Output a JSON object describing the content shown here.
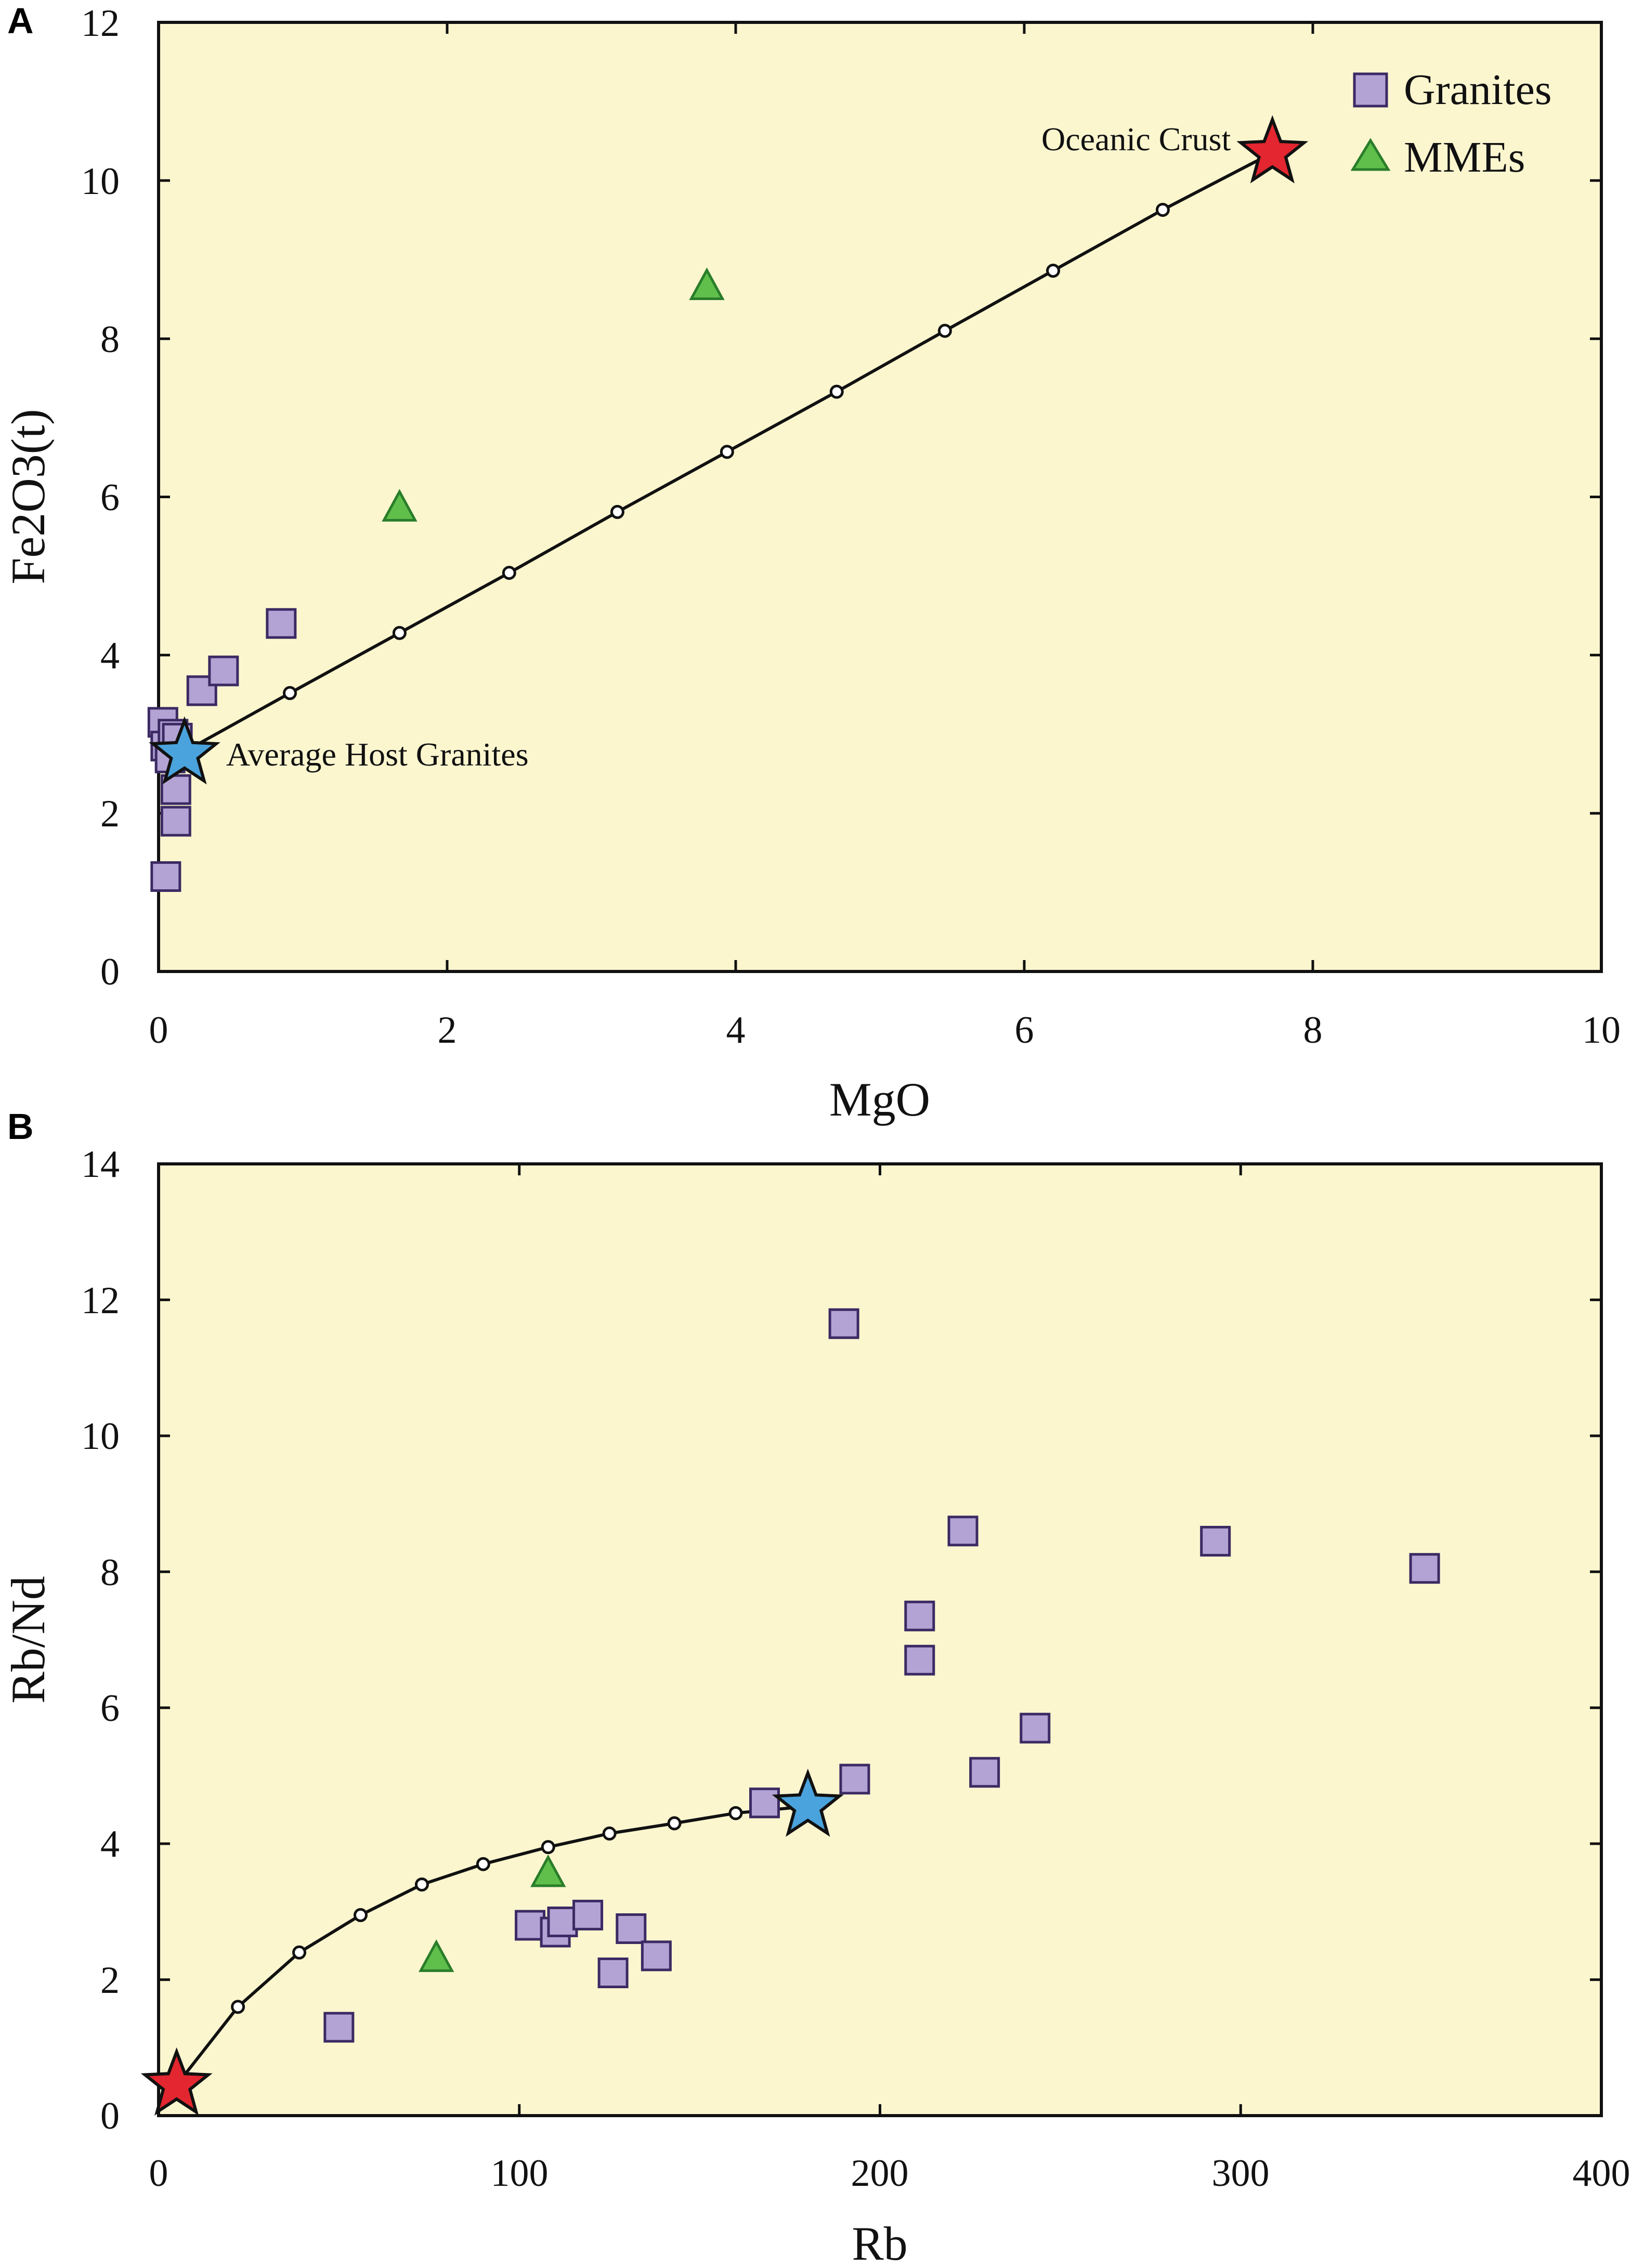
{
  "colors": {
    "plot_bg": "#fcf6cf",
    "granite_fill": "#b3a3d4",
    "granite_stroke": "#3b2a63",
    "mme_fill": "#5fbf4a",
    "mme_stroke": "#2a7d2a",
    "star_red": "#e3262f",
    "star_blue": "#4aa3dc",
    "line": "#111111"
  },
  "chart_data": [
    {
      "type": "scatter",
      "panel": "A",
      "xlabel": "MgO",
      "ylabel": "Fe2O3(t)",
      "xlim": [
        0,
        10
      ],
      "ylim": [
        0,
        12
      ],
      "xticks": [
        "0",
        "2",
        "4",
        "6",
        "8",
        "10"
      ],
      "yticks": [
        "0",
        "2",
        "4",
        "6",
        "8",
        "10",
        "12"
      ],
      "legend": [
        {
          "label": "Granites",
          "marker": "square"
        },
        {
          "label": "MMEs",
          "marker": "triangle"
        }
      ],
      "series": [
        {
          "name": "Granites",
          "marker": "square",
          "points": [
            [
              0.03,
              3.15
            ],
            [
              0.05,
              2.85
            ],
            [
              0.08,
              2.7
            ],
            [
              0.1,
              3.0
            ],
            [
              0.13,
              2.95
            ],
            [
              0.12,
              2.3
            ],
            [
              0.12,
              1.9
            ],
            [
              0.05,
              1.2
            ],
            [
              0.3,
              3.55
            ],
            [
              0.45,
              3.8
            ],
            [
              0.85,
              4.4
            ]
          ]
        },
        {
          "name": "MMEs",
          "marker": "triangle",
          "points": [
            [
              1.67,
              5.85
            ],
            [
              3.8,
              8.65
            ]
          ]
        }
      ],
      "mixing_line": {
        "points": [
          [
            0.15,
            2.75
          ],
          [
            0.91,
            3.52
          ],
          [
            1.67,
            4.28
          ],
          [
            2.43,
            5.04
          ],
          [
            3.18,
            5.81
          ],
          [
            3.94,
            6.57
          ],
          [
            4.7,
            7.33
          ],
          [
            5.45,
            8.1
          ],
          [
            6.2,
            8.86
          ],
          [
            6.96,
            9.63
          ],
          [
            7.72,
            10.35
          ]
        ]
      },
      "end_members": [
        {
          "label": "Average Host Granites",
          "x": 0.18,
          "y": 2.75,
          "color": "blue",
          "label_side": "right"
        },
        {
          "label": "Oceanic Crust",
          "x": 7.72,
          "y": 10.35,
          "color": "red",
          "label_side": "left"
        }
      ]
    },
    {
      "type": "scatter",
      "panel": "B",
      "xlabel": "Rb",
      "ylabel": "Rb/Nd",
      "xlim": [
        0,
        400
      ],
      "ylim": [
        0,
        14
      ],
      "xticks": [
        "0",
        "100",
        "200",
        "300",
        "400"
      ],
      "yticks": [
        "0",
        "2",
        "4",
        "6",
        "8",
        "10",
        "12",
        "14"
      ],
      "series": [
        {
          "name": "Granites",
          "marker": "square",
          "points": [
            [
              50,
              1.3
            ],
            [
              103,
              2.8
            ],
            [
              110,
              2.7
            ],
            [
              112,
              2.85
            ],
            [
              119,
              2.95
            ],
            [
              126,
              2.1
            ],
            [
              131,
              2.75
            ],
            [
              138,
              2.35
            ],
            [
              168,
              4.6
            ],
            [
              190,
              11.65
            ],
            [
              193,
              4.95
            ],
            [
              211,
              6.7
            ],
            [
              211,
              7.35
            ],
            [
              223,
              8.6
            ],
            [
              229,
              5.05
            ],
            [
              243,
              5.7
            ],
            [
              293,
              8.45
            ],
            [
              351,
              8.05
            ]
          ]
        },
        {
          "name": "MMEs",
          "marker": "triangle",
          "points": [
            [
              77,
              2.3
            ],
            [
              108,
              3.55
            ]
          ]
        }
      ],
      "mixing_curve": {
        "points": [
          [
            5,
            0.45
          ],
          [
            22,
            1.6
          ],
          [
            39,
            2.4
          ],
          [
            56,
            2.95
          ],
          [
            73,
            3.4
          ],
          [
            90,
            3.7
          ],
          [
            108,
            3.95
          ],
          [
            125,
            4.15
          ],
          [
            143,
            4.3
          ],
          [
            160,
            4.45
          ],
          [
            180,
            4.55
          ]
        ]
      },
      "end_members": [
        {
          "x": 5,
          "y": 0.45,
          "color": "red"
        },
        {
          "x": 180,
          "y": 4.55,
          "color": "blue"
        }
      ]
    }
  ]
}
